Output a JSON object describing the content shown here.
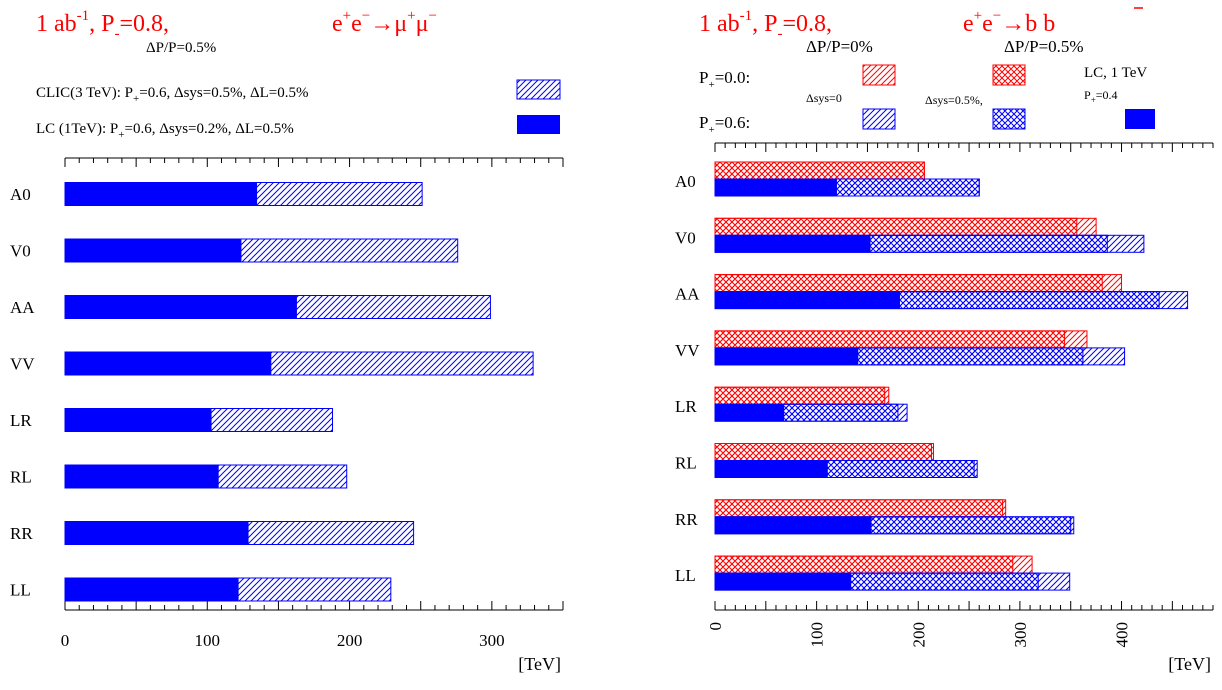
{
  "colors": {
    "blue": "#0000ff",
    "red": "#ff0000",
    "axis": "#000000"
  },
  "left": {
    "header": {
      "lumi": "1 ab",
      "lumi_sup": "-1",
      "pol_prefix": ",  P",
      "pol_sub": "-",
      "pol_value": "=0.8,",
      "process": "e",
      "dp": "ΔP/P=0.5%"
    },
    "legend": [
      {
        "label_a": "CLIC(3 TeV): P",
        "label_sub": "+",
        "label_b": "=0.6, Δsys=0.5%, ΔL=0.5%",
        "style": "hatch"
      },
      {
        "label_a": "LC (1TeV):   P",
        "label_sub": "+",
        "label_b": "=0.6, Δsys=0.2%, ΔL=0.5%",
        "style": "solid"
      }
    ]
  },
  "right": {
    "header": {
      "lumi": "1 ab",
      "lumi_sup": "-1",
      "pol_prefix": ",  P",
      "pol_sub": "-",
      "pol_value": "=0.8,",
      "process": "e",
      "dp0": "ΔP/P=0%",
      "dp5": "ΔP/P=0.5%"
    },
    "legend": {
      "p00": {
        "a": "P",
        "sub": "+",
        "b": "=0.0:"
      },
      "p06": {
        "a": "P",
        "sub": "+",
        "b": "=0.6:"
      },
      "dsys0": "Δsys=0",
      "dsys05": "Δsys=0.5%,",
      "lc_line1": "LC, 1 TeV",
      "lc_line2": {
        "a": "P",
        "sub": "+",
        "b": "=0.4"
      }
    }
  },
  "chart_data": [
    {
      "type": "bar",
      "orientation": "horizontal",
      "title": "1 ab^-1, P-=0.8, ΔP/P=0.5%, e+e- → μ+μ-",
      "categories": [
        "A0",
        "V0",
        "AA",
        "VV",
        "LR",
        "RL",
        "RR",
        "LL"
      ],
      "series": [
        {
          "name": "LC (1TeV): P+=0.6, Δsys=0.2%, ΔL=0.5%",
          "style": "solid",
          "color": "#0000ff",
          "values": [
            135,
            124,
            163,
            145,
            103,
            108,
            129,
            122
          ]
        },
        {
          "name": "CLIC(3 TeV): P+=0.6, Δsys=0.5%, ΔL=0.5%",
          "style": "hatch",
          "color": "#0000ff",
          "values": [
            251,
            276,
            299,
            329,
            188,
            198,
            245,
            229
          ]
        }
      ],
      "xlabel": "[TeV]",
      "xlim": [
        0,
        350
      ],
      "xticks": [
        0,
        100,
        200,
        300
      ],
      "x_minor_step": 10,
      "grid": false
    },
    {
      "type": "bar",
      "orientation": "horizontal",
      "title": "1 ab^-1, P-=0.8, e+e- → b b̄",
      "categories": [
        "A0",
        "V0",
        "AA",
        "VV",
        "LR",
        "RL",
        "RR",
        "LL"
      ],
      "series": [
        {
          "name": "P+=0.0, Δsys=0.5%",
          "style": "hatch",
          "color": "#ff0000",
          "row": "top",
          "values": [
            206,
            375,
            400,
            366,
            171,
            215,
            286,
            312
          ]
        },
        {
          "name": "P+=0.0, Δsys=0",
          "style": "crosshatch",
          "color": "#ff0000",
          "row": "top",
          "values": [
            206,
            356,
            381,
            344,
            167,
            213,
            283,
            293
          ]
        },
        {
          "name": "P+=0.6, Δsys=0.5%",
          "style": "hatch",
          "color": "#0000ff",
          "row": "bottom",
          "values": [
            260,
            422,
            465,
            403,
            189,
            258,
            353,
            349
          ]
        },
        {
          "name": "P+=0.6, Δsys=0",
          "style": "crosshatch",
          "color": "#0000ff",
          "row": "bottom",
          "values": [
            260,
            386,
            437,
            362,
            180,
            255,
            350,
            318
          ]
        },
        {
          "name": "LC, 1 TeV, P+=0.4",
          "style": "solid",
          "color": "#0000ff",
          "row": "bottom",
          "values": [
            120,
            153,
            182,
            141,
            68,
            111,
            154,
            134
          ]
        }
      ],
      "xlabel": "[TeV]",
      "xlim": [
        0,
        490
      ],
      "xticks": [
        0,
        100,
        200,
        300,
        400
      ],
      "x_minor_step": 10,
      "grid": false
    }
  ]
}
